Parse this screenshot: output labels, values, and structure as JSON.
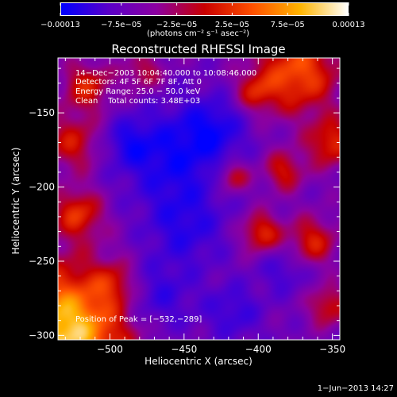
{
  "chart_data": {
    "type": "heatmap",
    "title": "Reconstructed RHESSI Image",
    "xlabel": "Heliocentric X (arcsec)",
    "ylabel": "Heliocentric Y (arcsec)",
    "xlim": [
      -535,
      -345
    ],
    "ylim": [
      -303,
      -113
    ],
    "xticks": [
      -500,
      -450,
      -400,
      -350
    ],
    "xtick_labels": [
      "−500",
      "−450",
      "−400",
      "−350"
    ],
    "yticks": [
      -300,
      -250,
      -200,
      -150
    ],
    "ytick_labels": [
      "−300",
      "−250",
      "−200",
      "−150"
    ],
    "colorbar": {
      "range": [
        -0.00013,
        0.00013
      ],
      "ticks": [
        -0.00013,
        -7.5e-05,
        -2.5e-05,
        2.5e-05,
        7.5e-05,
        0.00013
      ],
      "tick_labels": [
        "−0.00013",
        "−7.5e−05",
        "−2.5e−05",
        "2.5e−05",
        "7.5e−05",
        "0.00013"
      ],
      "label": "(photons cm⁻² s⁻¹ asec⁻²)",
      "colors": [
        "#0000ff",
        "#5a00c8",
        "#8c00a0",
        "#c80000",
        "#ff5000",
        "#ffb400",
        "#ffffff"
      ]
    },
    "annotations": [
      "14−Dec−2003 10:04:40.000 to 10:08:46.000",
      "Detectors: 4F 5F 6F 7F 8F, Att 0",
      "Energy Range: 25.0 − 50.0 keV",
      "Clean    Total counts: 3.48E+03"
    ],
    "peak_label": "Position of Peak = [−532,−289]",
    "peak": [
      -532,
      -289
    ]
  },
  "footer": "1−Jun−2013 14:27"
}
